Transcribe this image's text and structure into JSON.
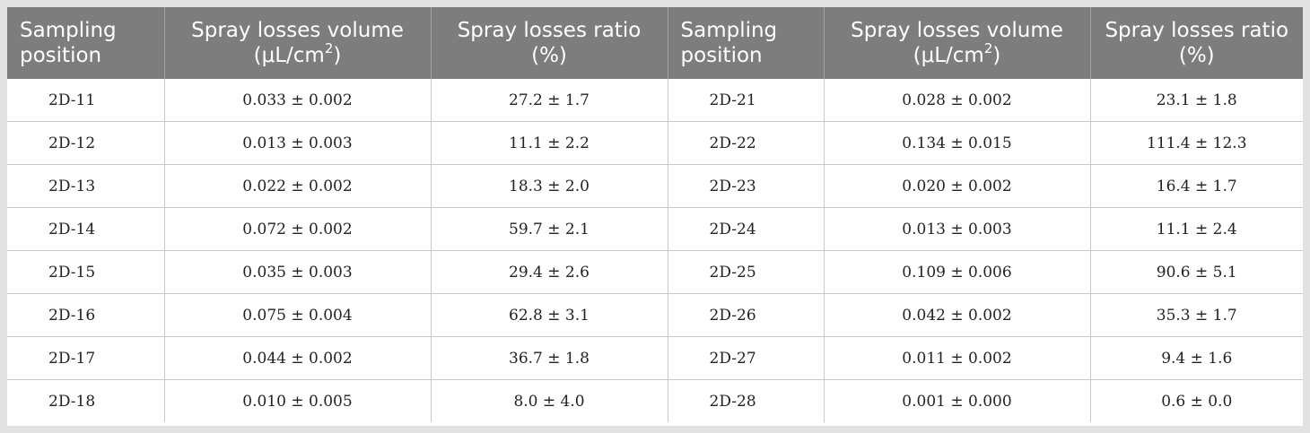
{
  "table": {
    "headers": [
      {
        "line1": "Sampling",
        "line2": "position",
        "sup": ""
      },
      {
        "line1": "Spray losses volume",
        "line2": "(μL/cm",
        "sup": "2",
        "close": ")"
      },
      {
        "line1": "Spray losses ratio",
        "line2": "(%)",
        "sup": ""
      },
      {
        "line1": "Sampling",
        "line2": "position",
        "sup": ""
      },
      {
        "line1": "Spray losses volume",
        "line2": "(μL/cm",
        "sup": "2",
        "close": ")"
      },
      {
        "line1": "Spray losses ratio",
        "line2": "(%)",
        "sup": ""
      }
    ],
    "rows": [
      [
        "2D-11",
        "0.033 ± 0.002",
        "27.2 ± 1.7",
        "2D-21",
        "0.028 ± 0.002",
        "23.1 ± 1.8"
      ],
      [
        "2D-12",
        "0.013 ± 0.003",
        "11.1 ± 2.2",
        "2D-22",
        "0.134 ± 0.015",
        "111.4 ± 12.3"
      ],
      [
        "2D-13",
        "0.022 ± 0.002",
        "18.3 ± 2.0",
        "2D-23",
        "0.020 ± 0.002",
        "16.4 ± 1.7"
      ],
      [
        "2D-14",
        "0.072 ± 0.002",
        "59.7 ± 2.1",
        "2D-24",
        "0.013 ± 0.003",
        "11.1 ± 2.4"
      ],
      [
        "2D-15",
        "0.035 ± 0.003",
        "29.4 ± 2.6",
        "2D-25",
        "0.109 ± 0.006",
        "90.6 ± 5.1"
      ],
      [
        "2D-16",
        "0.075 ± 0.004",
        "62.8 ± 3.1",
        "2D-26",
        "0.042 ± 0.002",
        "35.3 ± 1.7"
      ],
      [
        "2D-17",
        "0.044 ± 0.002",
        "36.7 ± 1.8",
        "2D-27",
        "0.011 ± 0.002",
        "9.4 ± 1.6"
      ],
      [
        "2D-18",
        "0.010 ± 0.005",
        "8.0 ± 4.0",
        "2D-28",
        "0.001 ± 0.000",
        "0.6 ± 0.0"
      ]
    ]
  }
}
